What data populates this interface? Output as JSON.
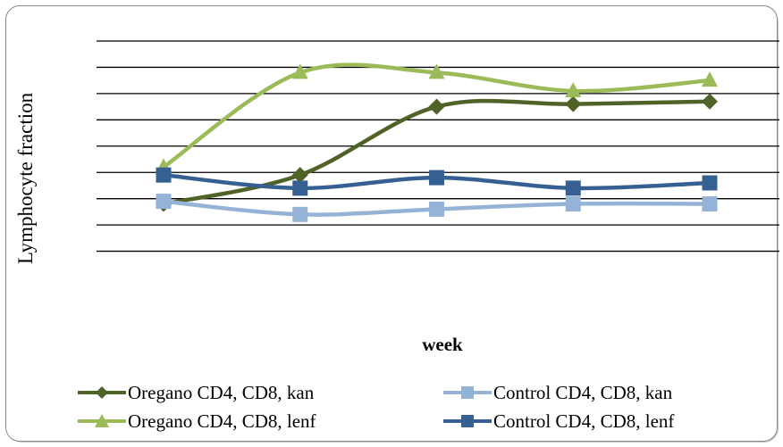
{
  "chart_data": {
    "type": "line",
    "xlabel": "week",
    "ylabel": "Lymphocyte fraction",
    "categories": [
      "",
      "",
      "",
      "",
      ""
    ],
    "ylim": [
      0,
      9
    ],
    "grid": true,
    "legend_position": "bottom",
    "series": [
      {
        "name": "Oregano CD4, CD8, kan",
        "values": [
          2.8,
          3.9,
          6.5,
          6.6,
          6.7
        ],
        "color": "#4f6228",
        "marker": "diamond",
        "smooth": true
      },
      {
        "name": "Control CD4, CD8, kan",
        "values": [
          2.9,
          2.4,
          2.6,
          2.8,
          2.8
        ],
        "color": "#95b3d7",
        "marker": "square",
        "smooth": true
      },
      {
        "name": "Oregano CD4, CD8, lenf",
        "values": [
          4.2,
          7.8,
          7.8,
          7.1,
          7.5
        ],
        "color": "#9bbb59",
        "marker": "triangle",
        "smooth": true
      },
      {
        "name": "Control CD4, CD8, lenf",
        "values": [
          3.9,
          3.4,
          3.8,
          3.4,
          3.6
        ],
        "color": "#366092",
        "marker": "square",
        "smooth": true
      }
    ]
  }
}
